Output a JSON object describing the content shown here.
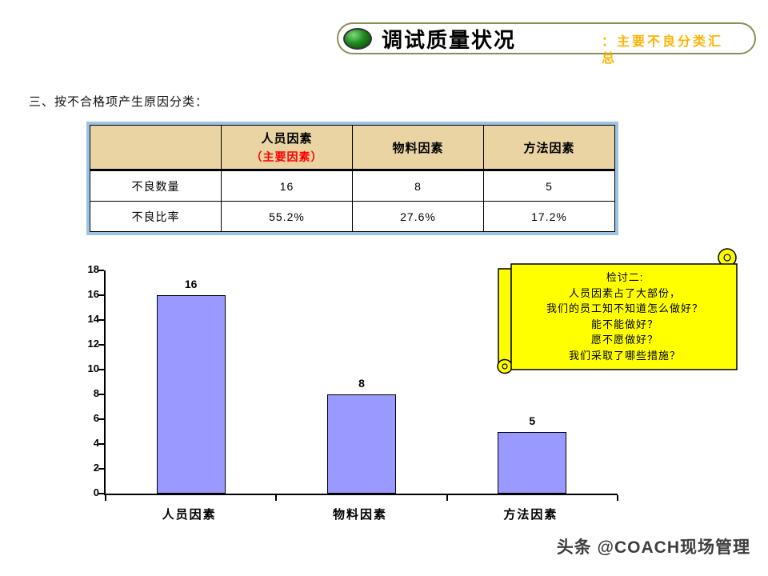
{
  "header": {
    "title": "调试质量状况",
    "subtitle": "：主要不良分类汇总",
    "subtitle_color": "#FFB400"
  },
  "section_heading": "三、按不合格项产生原因分类：",
  "table": {
    "columns": [
      "",
      "人员因素",
      "物料因素",
      "方法因素"
    ],
    "person_col_note": "（主要因素）",
    "note_color": "#FF0000",
    "header_bg": "#EAD4A3",
    "border_color": "#9CC3E5",
    "rows": [
      {
        "label": "不良数量",
        "values": [
          "16",
          "8",
          "5"
        ]
      },
      {
        "label": "不良比率",
        "values": [
          "55.2%",
          "27.6%",
          "17.2%"
        ]
      }
    ]
  },
  "chart_data": {
    "type": "bar",
    "categories": [
      "人员因素",
      "物料因素",
      "方法因素"
    ],
    "values": [
      16,
      8,
      5
    ],
    "title": "",
    "xlabel": "",
    "ylabel": "",
    "ylim": [
      0,
      18
    ],
    "ytick_step": 2,
    "bar_color": "#9999FF",
    "bar_border_color": "#000000",
    "grid": false,
    "legend": false
  },
  "callout": {
    "bg_color": "#FFFF00",
    "lines": [
      "检讨二:",
      "人员因素占了大部份，",
      "我们的员工知不知道怎么做好？",
      "能不能做好？",
      "愿不愿做好？",
      "我们采取了哪些措施？"
    ]
  },
  "watermark": "头条 @COACH现场管理"
}
